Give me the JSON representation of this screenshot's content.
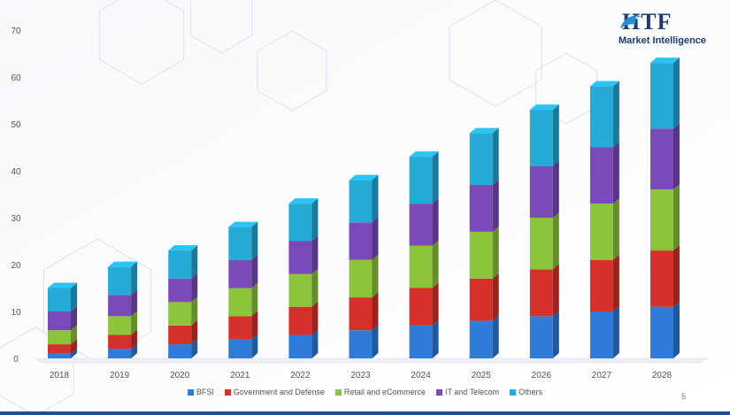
{
  "logo": {
    "brand": "HTF",
    "subtitle": "Market Intelligence"
  },
  "page_number": "5",
  "colors": {
    "BFSI": "#2f7bd8",
    "Government and Defense": "#d6302b",
    "Retail and eCommerce": "#8cc43c",
    "IT and Telecom": "#7a4bb8",
    "Others": "#26aad6"
  },
  "chart_data": {
    "type": "bar",
    "stacked": true,
    "categories": [
      "2018",
      "2019",
      "2020",
      "2021",
      "2022",
      "2023",
      "2024",
      "2025",
      "2026",
      "2027",
      "2028"
    ],
    "series": [
      {
        "name": "BFSI",
        "values": [
          1.0,
          2.0,
          3.0,
          4.0,
          5.0,
          6.0,
          7.0,
          8.0,
          9.0,
          10.0,
          11.0
        ]
      },
      {
        "name": "Government and Defense",
        "values": [
          2.0,
          3.0,
          4.0,
          5.0,
          6.0,
          7.0,
          8.0,
          9.0,
          10.0,
          11.0,
          12.0
        ]
      },
      {
        "name": "Retail and eCommerce",
        "values": [
          3.0,
          4.0,
          5.0,
          6.0,
          7.0,
          8.0,
          9.0,
          10.0,
          11.0,
          12.0,
          13.0
        ]
      },
      {
        "name": "IT and Telecom",
        "values": [
          4.0,
          4.5,
          5.0,
          6.0,
          7.0,
          8.0,
          9.0,
          10.0,
          11.0,
          12.0,
          13.0
        ]
      },
      {
        "name": "Others",
        "values": [
          5.0,
          6.0,
          6.0,
          7.0,
          8.0,
          9.0,
          10.0,
          11.0,
          12.0,
          13.0,
          14.0
        ]
      }
    ],
    "ylim": [
      0,
      70
    ],
    "yticks": [
      0,
      10,
      20,
      30,
      40,
      50,
      60,
      70
    ],
    "legend": "bottom",
    "grid": false
  }
}
